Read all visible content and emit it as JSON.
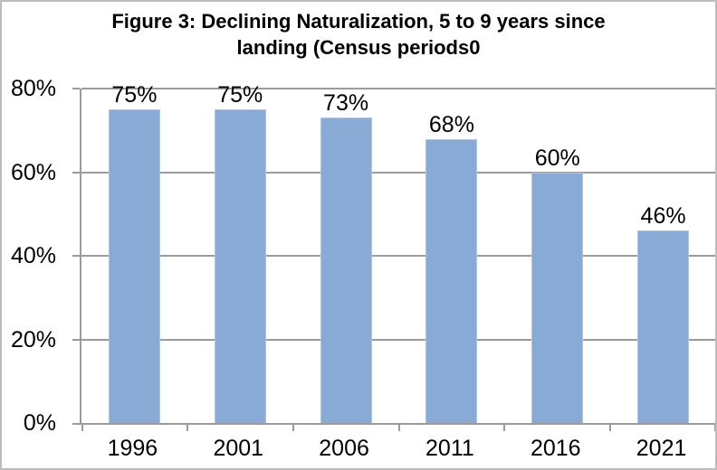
{
  "header": {
    "title_lines": [
      "Figure 3: Declining Naturalization, 5 to 9 years since",
      "landing (Census periods0"
    ]
  },
  "chart_data": {
    "type": "bar",
    "title": "Figure 3: Declining Naturalization, 5 to 9 years since landing (Census periods0",
    "categories": [
      "1996",
      "2001",
      "2006",
      "2011",
      "2016",
      "2021"
    ],
    "values": [
      75,
      75,
      73,
      68,
      60,
      46
    ],
    "value_labels": [
      "75%",
      "75%",
      "73%",
      "68%",
      "60%",
      "46%"
    ],
    "xlabel": "",
    "ylabel": "",
    "ylim": [
      0,
      80
    ],
    "yticks": [
      0,
      20,
      40,
      60,
      80
    ],
    "ytick_labels": [
      "0%",
      "20%",
      "40%",
      "60%",
      "80%"
    ],
    "grid": true,
    "legend": "none",
    "colors": {
      "bar_fill": "#88aad4",
      "bar_border": "#aec4e0",
      "gridline": "#9b9b9b",
      "axis": "#9b9b9b",
      "figure_border": "#bdbdbd",
      "text": "#000000",
      "background": "#ffffff"
    }
  }
}
